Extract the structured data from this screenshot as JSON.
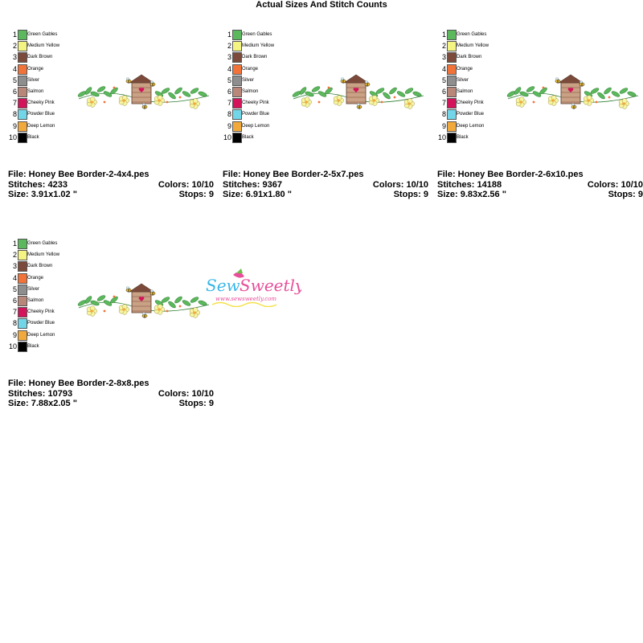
{
  "page_title": "Actual Sizes And Stitch Counts",
  "palette": [
    {
      "num": "1",
      "name": "Green Gables",
      "color": "#5cb85c"
    },
    {
      "num": "2",
      "name": "Medium Yellow",
      "color": "#f4f483"
    },
    {
      "num": "3",
      "name": "Dark Brown",
      "color": "#7b4a3a"
    },
    {
      "num": "4",
      "name": "Orange",
      "color": "#f2733a"
    },
    {
      "num": "5",
      "name": "Silver",
      "color": "#8e8e8e"
    },
    {
      "num": "6",
      "name": "Salmon",
      "color": "#b8877a"
    },
    {
      "num": "7",
      "name": "Cheeky Pink",
      "color": "#d4145a"
    },
    {
      "num": "8",
      "name": "Powder Blue",
      "color": "#72d6e8"
    },
    {
      "num": "9",
      "name": "Deep Lemon",
      "color": "#f2a93b"
    },
    {
      "num": "10",
      "name": "Black",
      "color": "#000000"
    }
  ],
  "cards": [
    {
      "file": "File: Honey Bee Border-2-4x4.pes",
      "stitches": "Stitches: 4233",
      "colors": "Colors: 10/10",
      "size": "Size: 3.91x1.02 \"",
      "stops": "Stops: 9"
    },
    {
      "file": "File: Honey Bee Border-2-5x7.pes",
      "stitches": "Stitches: 9367",
      "colors": "Colors: 10/10",
      "size": "Size: 6.91x1.80 \"",
      "stops": "Stops: 9"
    },
    {
      "file": "File: Honey Bee Border-2-6x10.pes",
      "stitches": "Stitches: 14188",
      "colors": "Colors: 10/10",
      "size": "Size: 9.83x2.56 \"",
      "stops": "Stops: 9"
    },
    {
      "file": "File: Honey Bee Border-2-8x8.pes",
      "stitches": "Stitches: 10793",
      "colors": "Colors: 10/10",
      "size": "Size: 7.88x2.05 \"",
      "stops": "Stops: 9"
    }
  ],
  "watermark": {
    "brand": "Sew Sweetly",
    "url": "www.sewsweetly.com"
  }
}
